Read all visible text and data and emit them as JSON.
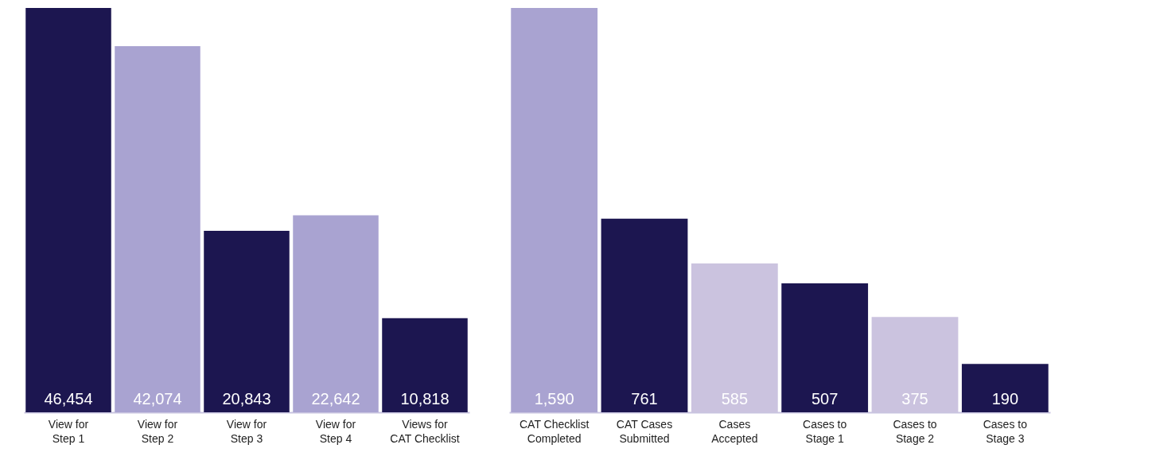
{
  "chart_data": [
    {
      "type": "bar",
      "categories": [
        "View for\nStep 1",
        "View for\nStep 2",
        "View for\nStep 3",
        "View for\nStep 4",
        "Views for\nCAT Checklist"
      ],
      "values": [
        46454,
        42074,
        20843,
        22642,
        10818
      ],
      "colors": [
        "#1c1650",
        "#a9a3d1",
        "#1c1650",
        "#a9a3d1",
        "#1c1650"
      ],
      "value_labels": [
        "46,454",
        "42,074",
        "20,843",
        "22,642",
        "10,818"
      ]
    },
    {
      "type": "bar",
      "categories": [
        "CAT Checklist\nCompleted",
        "CAT Cases\nSubmitted",
        "Cases\nAccepted",
        "Cases to\nStage 1",
        "Cases to\nStage 2",
        "Cases to\nStage 3"
      ],
      "values": [
        1590,
        761,
        585,
        507,
        375,
        190
      ],
      "colors": [
        "#a9a3d1",
        "#1c1650",
        "#cbc3df",
        "#1c1650",
        "#cbc3df",
        "#1c1650"
      ],
      "value_labels": [
        "1,590",
        "761",
        "585",
        "507",
        "375",
        "190"
      ]
    }
  ]
}
